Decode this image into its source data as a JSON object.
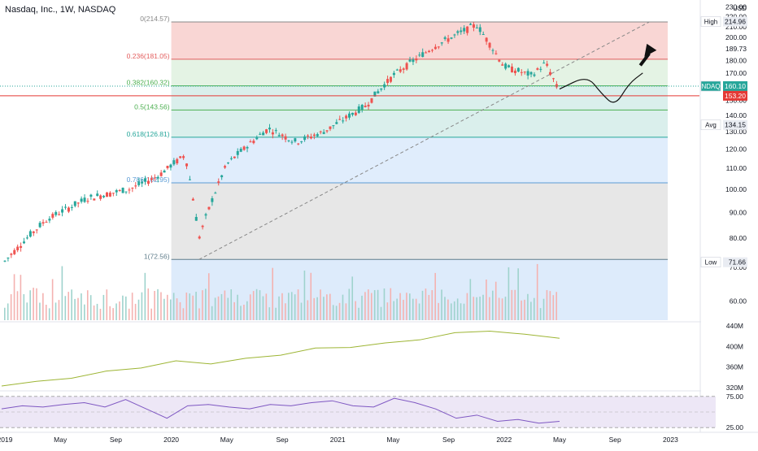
{
  "header": {
    "symbol_title": "Nasdaq, Inc., 1W, NASDAQ",
    "currency": "USD"
  },
  "price_axis": {
    "ticks": [
      "230.00",
      "220.00",
      "210.00",
      "200.00",
      "189.73",
      "180.00",
      "170.00",
      "150.00",
      "140.00",
      "130.00",
      "120.00",
      "110.00",
      "100.00",
      "90.00",
      "80.00",
      "70.00",
      "60.00"
    ],
    "tick_values": [
      230,
      220,
      210,
      200,
      189.73,
      180,
      170,
      150,
      140,
      130,
      120,
      110,
      100,
      90,
      80,
      70,
      60
    ]
  },
  "badges": {
    "high_label": "High",
    "high_value": "214.96",
    "ndaq_label": "NDAQ",
    "ndaq_value": "160.10",
    "last_value": "153.20",
    "avg_label": "Avg",
    "avg_value": "134.15",
    "low_label": "Low",
    "low_value": "71.66"
  },
  "colors": {
    "up": "#26a69a",
    "down": "#ef5350",
    "fib_red": "#f8cfcd",
    "fib_green": "#dff1df",
    "fib_teal": "#d3ece9",
    "fib_blue": "#dbeafc",
    "fib_gray": "#e3e3e3",
    "obv_line": "#9db534",
    "rsi_line": "#7e57c2",
    "rsi_band": "#ede7f6"
  },
  "time_axis": [
    "2019",
    "May",
    "Sep",
    "2020",
    "May",
    "Sep",
    "2021",
    "May",
    "Sep",
    "2022",
    "May",
    "Sep",
    "2023"
  ],
  "obv_axis": [
    "440M",
    "400M",
    "360M",
    "320M"
  ],
  "rsi_axis": [
    "75.00",
    "25.00"
  ],
  "chart_data": [
    {
      "type": "candlestick",
      "title": "Nasdaq, Inc., 1W, NASDAQ",
      "x_range": [
        "2019-01",
        "2023-01"
      ],
      "ylim": [
        55,
        232
      ],
      "y_scale": "log",
      "anchors": [
        {
          "date": "2019-01",
          "price": 72
        },
        {
          "date": "2019-04",
          "price": 87
        },
        {
          "date": "2019-07",
          "price": 96
        },
        {
          "date": "2019-10",
          "price": 100
        },
        {
          "date": "2019-12",
          "price": 106
        },
        {
          "date": "2020-02",
          "price": 117
        },
        {
          "date": "2020-03",
          "price": 80
        },
        {
          "date": "2020-05",
          "price": 112
        },
        {
          "date": "2020-08",
          "price": 132
        },
        {
          "date": "2020-10",
          "price": 124
        },
        {
          "date": "2020-12",
          "price": 130
        },
        {
          "date": "2021-03",
          "price": 146
        },
        {
          "date": "2021-05",
          "price": 168
        },
        {
          "date": "2021-08",
          "price": 192
        },
        {
          "date": "2021-11",
          "price": 212
        },
        {
          "date": "2022-01",
          "price": 175
        },
        {
          "date": "2022-03",
          "price": 168
        },
        {
          "date": "2022-04",
          "price": 178
        },
        {
          "date": "2022-05",
          "price": 155
        }
      ],
      "fibonacci": [
        {
          "level": "0",
          "price": 214.57,
          "label": "0(214.57)"
        },
        {
          "level": "0.236",
          "price": 181.05,
          "label": "0.236(181.05)"
        },
        {
          "level": "0.382",
          "price": 160.32,
          "label": "0.382(160.32)"
        },
        {
          "level": "0.5",
          "price": 143.56,
          "label": "0.5(143.56)"
        },
        {
          "level": "0.618",
          "price": 126.81,
          "label": "0.618(126.81)"
        },
        {
          "level": "0.786",
          "price": 102.95,
          "label": "0.786(102.95)"
        },
        {
          "level": "1",
          "price": 72.56,
          "label": "1(72.56)"
        }
      ],
      "annotations": {
        "current_price": 160.1,
        "horizontal_line_price": 153.2,
        "trendline": {
          "from": {
            "date": "2020-03",
            "price": 72.56
          },
          "to": {
            "date": "2022-10",
            "price": 214.57
          }
        },
        "projection_path": [
          {
            "date": "2022-05",
            "price": 158
          },
          {
            "date": "2022-07",
            "price": 168
          },
          {
            "date": "2022-08",
            "price": 155
          },
          {
            "date": "2022-09",
            "price": 146
          },
          {
            "date": "2022-10",
            "price": 162
          },
          {
            "date": "2022-11",
            "price": 170
          }
        ],
        "arrow": {
          "from": {
            "date": "2022-10",
            "price": 176
          },
          "to": {
            "date": "2022-11",
            "price": 190
          }
        }
      }
    },
    {
      "type": "line",
      "series": [
        {
          "values": [
            325,
            330,
            340,
            350,
            360,
            370,
            368,
            375,
            385,
            395,
            400,
            405,
            415,
            425,
            432,
            422,
            418
          ]
        }
      ],
      "ylim": [
        315,
        445
      ]
    },
    {
      "type": "line",
      "series": [
        {
          "values": [
            55,
            60,
            58,
            62,
            65,
            58,
            70,
            55,
            40,
            60,
            62,
            58,
            55,
            62,
            60,
            65,
            68,
            60,
            58,
            72,
            65,
            55,
            40,
            45,
            35,
            38,
            32,
            35
          ]
        }
      ],
      "ylim": [
        20,
        80
      ],
      "bands": [
        25,
        75
      ]
    }
  ]
}
